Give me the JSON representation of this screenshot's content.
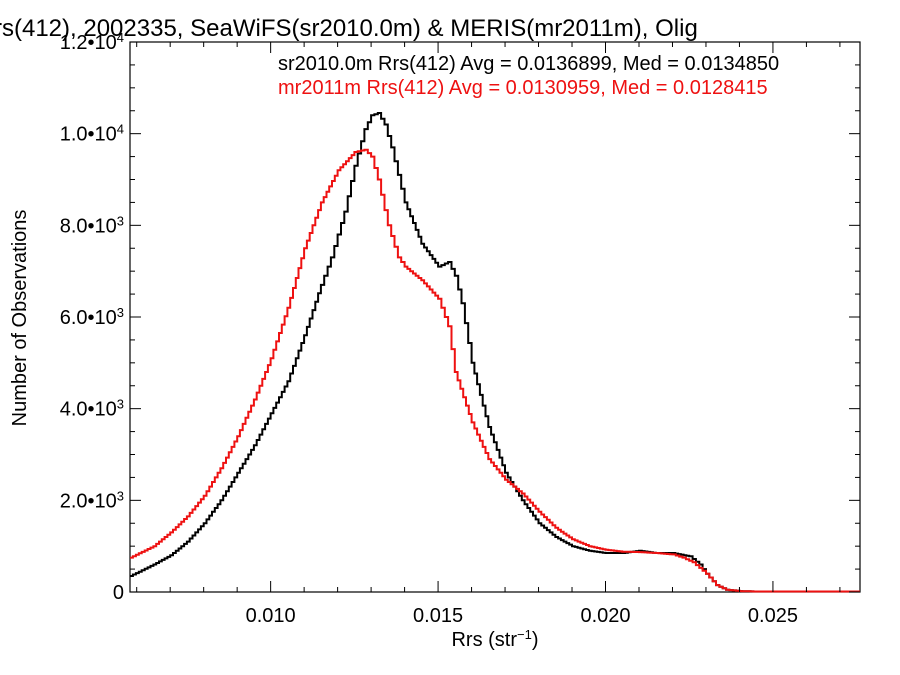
{
  "chart_data": {
    "type": "line",
    "title": "rs(412), 2002335, SeaWiFS(sr2010.0m) & MERIS(mr2011m), Olig",
    "xlabel": "Rrs (str",
    "xlabel_sup": "−1",
    "xlabel_close": ")",
    "ylabel": "Number of Observations",
    "xlim": [
      0.0058,
      0.0276
    ],
    "ylim": [
      0,
      12000
    ],
    "grid": false,
    "legend_position": "top-right",
    "x_ticks": [
      {
        "value": 0.01,
        "label": "0.010"
      },
      {
        "value": 0.015,
        "label": "0.015"
      },
      {
        "value": 0.02,
        "label": "0.020"
      },
      {
        "value": 0.025,
        "label": "0.025"
      }
    ],
    "y_ticks": [
      {
        "value": 0,
        "mant": "0",
        "exp": ""
      },
      {
        "value": 2000,
        "mant": "2.0•10",
        "exp": "3"
      },
      {
        "value": 4000,
        "mant": "4.0•10",
        "exp": "3"
      },
      {
        "value": 6000,
        "mant": "6.0•10",
        "exp": "3"
      },
      {
        "value": 8000,
        "mant": "8.0•10",
        "exp": "3"
      },
      {
        "value": 10000,
        "mant": "1.0•10",
        "exp": "4"
      },
      {
        "value": 12000,
        "mant": "1.2•10",
        "exp": "4"
      }
    ],
    "series": [
      {
        "name": "sr2010.0m Rrs(412) Avg = 0.0136899, Med = 0.0134850",
        "color": "#000000",
        "x": [
          0.0058,
          0.0065,
          0.007,
          0.0075,
          0.008,
          0.0085,
          0.009,
          0.0095,
          0.01,
          0.0105,
          0.011,
          0.0115,
          0.0118,
          0.012,
          0.0122,
          0.0125,
          0.0128,
          0.013,
          0.0132,
          0.0134,
          0.0136,
          0.014,
          0.0145,
          0.015,
          0.0153,
          0.0155,
          0.0157,
          0.016,
          0.0165,
          0.017,
          0.0175,
          0.018,
          0.0185,
          0.019,
          0.0195,
          0.02,
          0.0205,
          0.021,
          0.0215,
          0.022,
          0.0225,
          0.0228,
          0.023,
          0.0233,
          0.0236,
          0.024,
          0.0245,
          0.025,
          0.026,
          0.0276
        ],
        "y": [
          350,
          600,
          800,
          1100,
          1500,
          2000,
          2600,
          3200,
          3900,
          4600,
          5600,
          6700,
          7300,
          7800,
          8300,
          9300,
          10100,
          10400,
          10450,
          10200,
          9700,
          8500,
          7600,
          7100,
          7200,
          6900,
          6300,
          5000,
          3600,
          2600,
          2000,
          1500,
          1200,
          1000,
          900,
          850,
          850,
          900,
          850,
          850,
          780,
          600,
          400,
          150,
          50,
          20,
          10,
          10,
          10,
          10
        ]
      },
      {
        "name": "mr2011m Rrs(412) Avg = 0.0130959, Med = 0.0128415",
        "color": "#ee1111",
        "x": [
          0.0058,
          0.0065,
          0.007,
          0.0075,
          0.008,
          0.0085,
          0.009,
          0.0095,
          0.01,
          0.0105,
          0.011,
          0.0115,
          0.012,
          0.0125,
          0.0128,
          0.013,
          0.0132,
          0.0135,
          0.0138,
          0.014,
          0.0145,
          0.015,
          0.0153,
          0.0155,
          0.016,
          0.0165,
          0.017,
          0.0175,
          0.018,
          0.0185,
          0.019,
          0.0195,
          0.02,
          0.0205,
          0.021,
          0.0215,
          0.022,
          0.0223,
          0.0226,
          0.023,
          0.0233,
          0.0236,
          0.024,
          0.0245,
          0.025,
          0.026,
          0.0276
        ],
        "y": [
          750,
          1000,
          1300,
          1650,
          2100,
          2700,
          3400,
          4200,
          5100,
          6200,
          7500,
          8500,
          9200,
          9600,
          9650,
          9500,
          9000,
          8000,
          7300,
          7100,
          6800,
          6400,
          5800,
          4800,
          3700,
          2900,
          2450,
          2150,
          1750,
          1400,
          1150,
          1000,
          920,
          880,
          870,
          850,
          820,
          750,
          650,
          400,
          150,
          50,
          20,
          10,
          10,
          10,
          10
        ]
      }
    ]
  }
}
